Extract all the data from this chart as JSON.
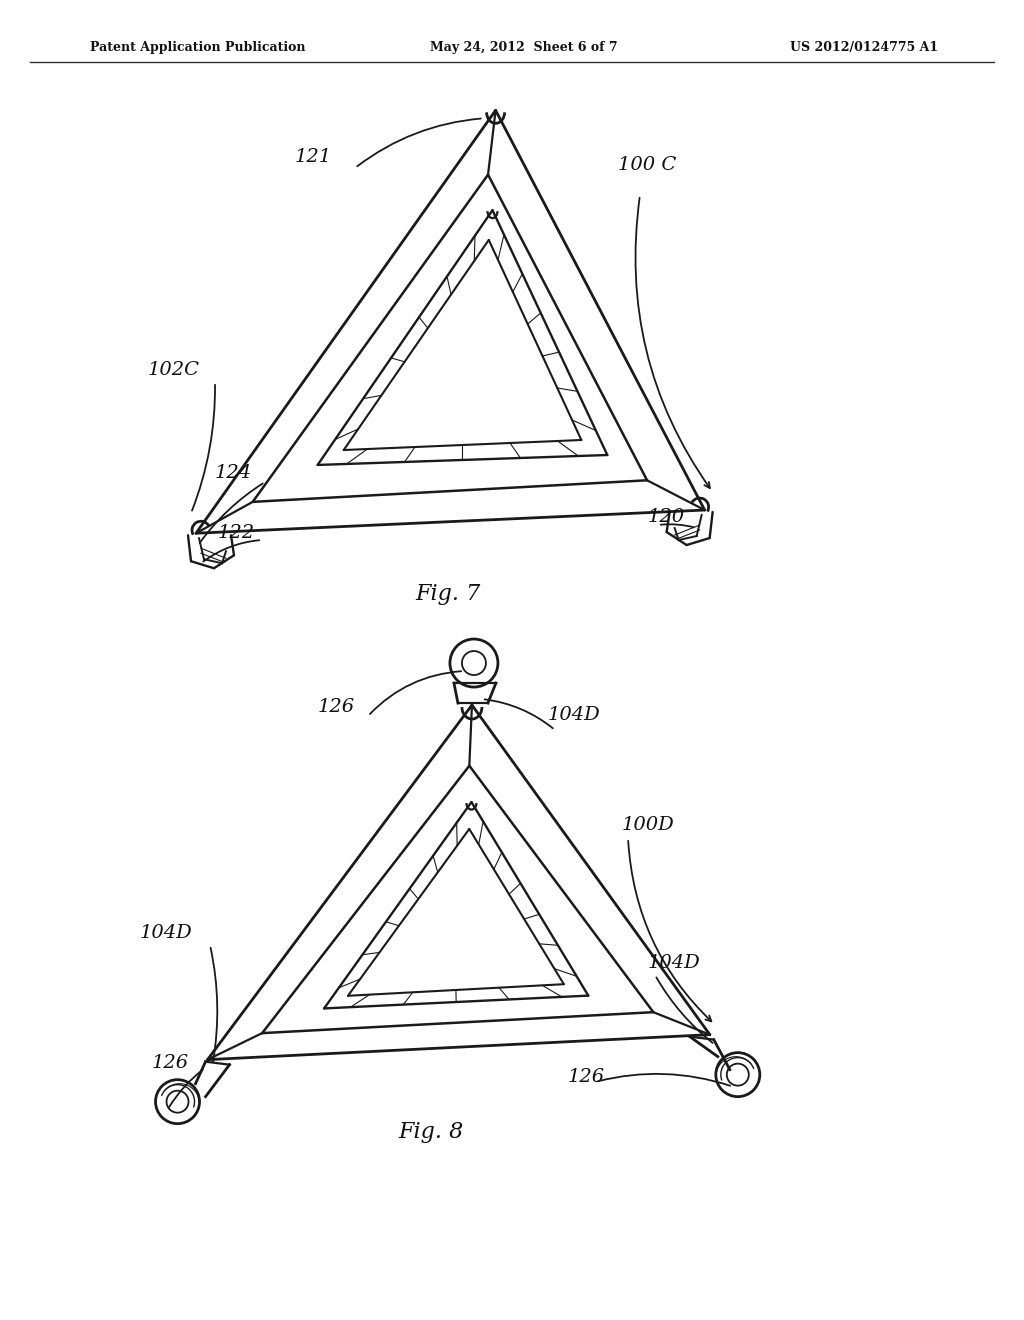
{
  "background_color": "#ffffff",
  "header_left": "Patent Application Publication",
  "header_mid": "May 24, 2012  Sheet 6 of 7",
  "header_right": "US 2012/0124775 A1",
  "fig7_label": "Fig. 7",
  "fig8_label": "Fig. 8",
  "line_color": "#1a1a1a",
  "text_color": "#111111"
}
